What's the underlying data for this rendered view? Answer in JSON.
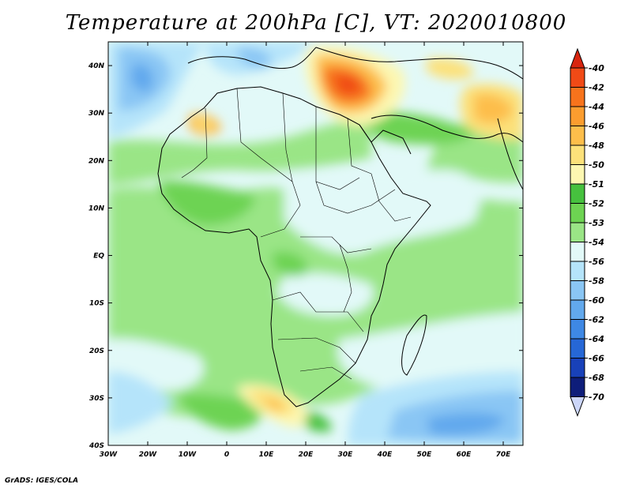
{
  "title": "Temperature at 200hPa [C], VT: 2020010800",
  "credit": "GrADS: IGES/COLA",
  "map": {
    "lon_range": [
      -30,
      75
    ],
    "lat_range": [
      -40,
      45
    ],
    "lat_labels": [
      "40N",
      "30N",
      "20N",
      "10N",
      "EQ",
      "10S",
      "20S",
      "30S",
      "40S"
    ],
    "lat_values": [
      40,
      30,
      20,
      10,
      0,
      -10,
      -20,
      -30,
      -40
    ],
    "lon_labels": [
      "30W",
      "20W",
      "10W",
      "0",
      "10E",
      "20E",
      "30E",
      "40E",
      "50E",
      "60E",
      "70E"
    ],
    "lon_values": [
      -30,
      -20,
      -10,
      0,
      10,
      20,
      30,
      40,
      50,
      60,
      70
    ]
  },
  "colorbar": {
    "labels": [
      "-40",
      "-42",
      "-44",
      "-46",
      "-48",
      "-50",
      "-51",
      "-52",
      "-53",
      "-54",
      "-56",
      "-58",
      "-60",
      "-62",
      "-64",
      "-66",
      "-68",
      "-70"
    ],
    "colors": [
      "#f04a16",
      "#f7731c",
      "#fb9d2f",
      "#fdbe4b",
      "#fce17a",
      "#fdf7b1",
      "#46c13e",
      "#6dd352",
      "#9ae586",
      "#e2f9f8",
      "#b5e4fa",
      "#8ac6f4",
      "#62a9ed",
      "#3e88e4",
      "#2667d6",
      "#1841b9",
      "#0e1d7a"
    ],
    "top_color": "#d8250f",
    "bottom_color": "#ccd6f9"
  }
}
